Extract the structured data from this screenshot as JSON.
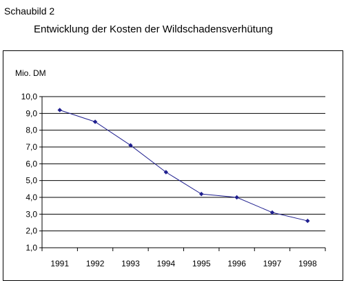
{
  "caption": "Schaubild 2",
  "chart_data": {
    "type": "line",
    "title": "Entwicklung der Kosten der Wildschadensverhütung",
    "ylabel": "Mio. DM",
    "xlabel": "",
    "categories": [
      "1991",
      "1992",
      "1993",
      "1994",
      "1995",
      "1996",
      "1997",
      "1998"
    ],
    "series": [
      {
        "values": [
          9.2,
          8.5,
          7.1,
          5.5,
          4.2,
          4.0,
          3.1,
          2.6
        ]
      }
    ],
    "ylim": [
      1.0,
      10.0
    ],
    "yticks": [
      "1,0",
      "2,0",
      "3,0",
      "4,0",
      "5,0",
      "6,0",
      "7,0",
      "8,0",
      "9,0",
      "10,0"
    ],
    "grid": true,
    "legend": "none",
    "line_color": "#1f1f8f"
  }
}
